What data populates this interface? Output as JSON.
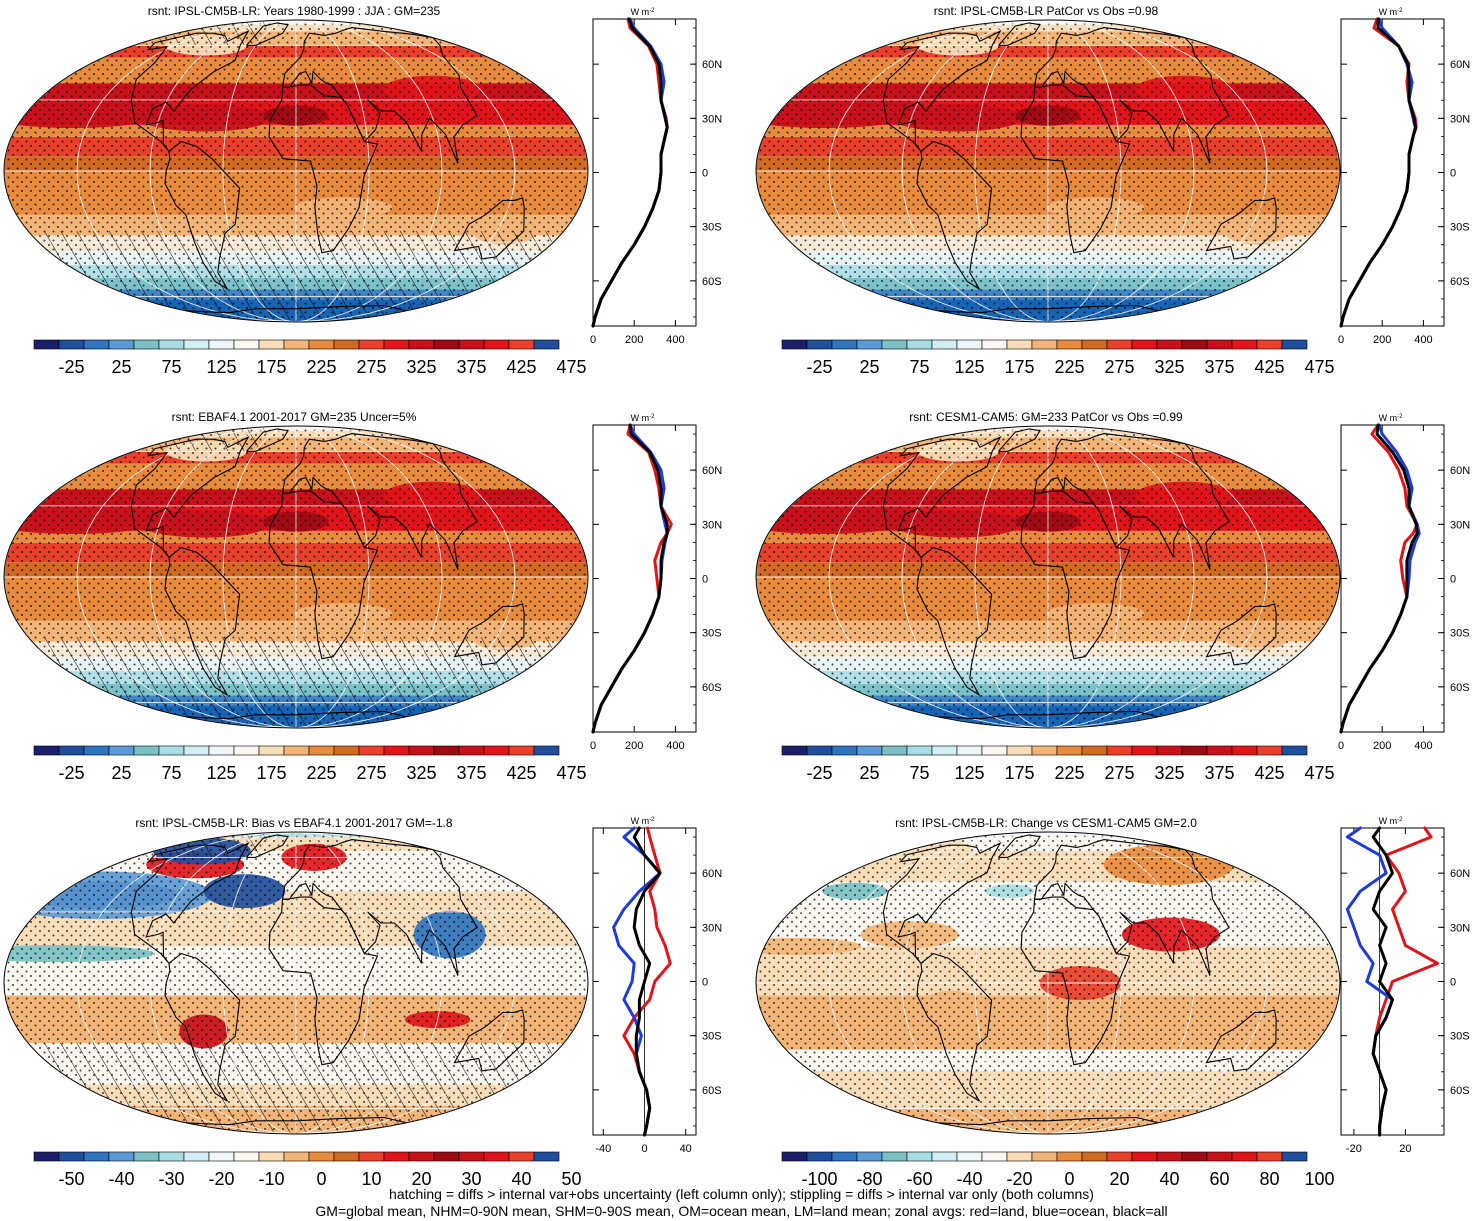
{
  "footer": {
    "line1": "hatching = diffs > internal var+obs uncertainty (left column only); stippling = diffs > internal var only (both columns)",
    "line2": "GM=global mean, NHM=0-90N mean, SHM=0-90S mean, OM=ocean mean, LM=land mean; zonal avgs: red=land, blue=ocean, black=all"
  },
  "colorbars": {
    "absolute": {
      "labels": [
        "-25",
        "25",
        "75",
        "125",
        "175",
        "225",
        "275",
        "325",
        "375",
        "425",
        "475"
      ],
      "colors": [
        "#1b1f6b",
        "#1f4e9c",
        "#2f74bf",
        "#5b9ad6",
        "#7ac0c4",
        "#a7dde3",
        "#d3eff6",
        "#eef6f8",
        "#fbf7f1",
        "#f9ddb8",
        "#f3b577",
        "#e98b3e",
        "#d36a22",
        "#e8402b",
        "#e3131a",
        "#c8101b",
        "#9e0a12",
        "#c8101b",
        "#e3131a",
        "#e8402b",
        "#1f4e9c"
      ]
    },
    "bias": {
      "labels": [
        "-50",
        "-40",
        "-30",
        "-20",
        "-10",
        "0",
        "10",
        "20",
        "30",
        "40",
        "50"
      ],
      "colors": [
        "#1b1f6b",
        "#1f4e9c",
        "#2f74bf",
        "#5b9ad6",
        "#7ac0c4",
        "#a7dde3",
        "#d3eff6",
        "#eef6f8",
        "#fbf7f1",
        "#f9ddb8",
        "#f3b577",
        "#e98b3e",
        "#d36a22",
        "#e8402b",
        "#e3131a",
        "#c8101b",
        "#9e0a12",
        "#c8101b",
        "#e3131a",
        "#e8402b",
        "#1f4e9c"
      ]
    },
    "change": {
      "labels": [
        "-100",
        "-80",
        "-60",
        "-40",
        "-20",
        "0",
        "20",
        "40",
        "60",
        "80",
        "100"
      ],
      "colors": [
        "#1b1f6b",
        "#1f4e9c",
        "#2f74bf",
        "#5b9ad6",
        "#7ac0c4",
        "#a7dde3",
        "#d3eff6",
        "#eef6f8",
        "#fbf7f1",
        "#f9ddb8",
        "#f3b577",
        "#e98b3e",
        "#d36a22",
        "#e8402b",
        "#e3131a",
        "#c8101b",
        "#9e0a12",
        "#c8101b",
        "#e3131a",
        "#e8402b",
        "#1f4e9c"
      ]
    }
  },
  "chart_data": [
    {
      "type": "heatmap",
      "title": "rsnt: IPSL-CM5B-LR: Years 1980-1999 : JJA : GM=235",
      "colorbar": "absolute",
      "map_style": "absolute",
      "hatching": true,
      "stippling": true,
      "zonal": {
        "type": "line",
        "unit": "W m",
        "unit_exp": "-2",
        "xticks": [
          "0",
          "200",
          "400"
        ],
        "xlim": [
          0,
          500
        ],
        "yticks": [
          "60N",
          "30N",
          "0",
          "30S",
          "60S"
        ],
        "ylim": [
          -85,
          85
        ],
        "lat": [
          -85,
          -80,
          -70,
          -60,
          -50,
          -40,
          -30,
          -20,
          -10,
          0,
          10,
          20,
          25,
          30,
          40,
          50,
          60,
          70,
          80,
          85
        ],
        "series": [
          {
            "values": [
              0,
              10,
              40,
              90,
              140,
              200,
              250,
              290,
              320,
              330,
              330,
              350,
              360,
              355,
              330,
              320,
              310,
              270,
              180,
              170
            ],
            "color": "#e3131a"
          },
          {
            "values": [
              0,
              10,
              40,
              90,
              140,
              200,
              250,
              290,
              320,
              330,
              330,
              350,
              360,
              350,
              330,
              345,
              330,
              280,
              200,
              180
            ],
            "color": "#1f3bd6"
          },
          {
            "values": [
              0,
              10,
              40,
              90,
              140,
              200,
              250,
              290,
              320,
              330,
              330,
              350,
              360,
              352,
              330,
              330,
              320,
              275,
              190,
              175
            ],
            "color": "#000000"
          }
        ]
      }
    },
    {
      "type": "heatmap",
      "title": "rsnt: IPSL-CM5B-LR PatCor vs Obs =0.98",
      "colorbar": "absolute",
      "map_style": "absolute",
      "hatching": false,
      "stippling": true,
      "zonal": {
        "type": "line",
        "unit": "W m",
        "unit_exp": "-2",
        "xticks": [
          "0",
          "200",
          "400"
        ],
        "xlim": [
          0,
          500
        ],
        "yticks": [
          "60N",
          "30N",
          "0",
          "30S",
          "60S"
        ],
        "ylim": [
          -85,
          85
        ],
        "lat": [
          -85,
          -80,
          -70,
          -60,
          -50,
          -40,
          -30,
          -20,
          -10,
          0,
          10,
          20,
          25,
          30,
          40,
          50,
          60,
          70,
          80,
          85
        ],
        "series": [
          {
            "values": [
              0,
              10,
              40,
              90,
              140,
              200,
              250,
              290,
              320,
              330,
              330,
              350,
              365,
              360,
              330,
              320,
              330,
              280,
              160,
              175
            ],
            "color": "#e3131a"
          },
          {
            "values": [
              0,
              10,
              40,
              90,
              140,
              200,
              250,
              290,
              320,
              330,
              330,
              350,
              360,
              350,
              330,
              345,
              320,
              280,
              200,
              185
            ],
            "color": "#1f3bd6"
          },
          {
            "values": [
              0,
              10,
              40,
              90,
              140,
              200,
              250,
              290,
              320,
              330,
              330,
              350,
              362,
              355,
              330,
              330,
              325,
              280,
              180,
              180
            ],
            "color": "#000000"
          }
        ]
      }
    },
    {
      "type": "heatmap",
      "title": "rsnt: EBAF4.1 2001-2017 GM=235 Uncer=5%",
      "colorbar": "absolute",
      "map_style": "absolute",
      "hatching": true,
      "stippling": true,
      "zonal": {
        "type": "line",
        "unit": "W m",
        "unit_exp": "-2",
        "xticks": [
          "0",
          "200",
          "400"
        ],
        "xlim": [
          0,
          500
        ],
        "yticks": [
          "60N",
          "30N",
          "0",
          "30S",
          "60S"
        ],
        "ylim": [
          -85,
          85
        ],
        "lat": [
          -85,
          -80,
          -70,
          -60,
          -50,
          -40,
          -30,
          -20,
          -10,
          0,
          10,
          20,
          25,
          30,
          40,
          50,
          60,
          70,
          80,
          85
        ],
        "series": [
          {
            "values": [
              0,
              10,
              40,
              90,
              140,
              200,
              250,
              290,
              320,
              310,
              300,
              330,
              360,
              380,
              330,
              320,
              300,
              270,
              170,
              180
            ],
            "color": "#e3131a"
          },
          {
            "values": [
              0,
              10,
              40,
              90,
              140,
              200,
              250,
              290,
              320,
              330,
              335,
              350,
              360,
              350,
              330,
              345,
              330,
              280,
              200,
              180
            ],
            "color": "#1f3bd6"
          },
          {
            "values": [
              0,
              10,
              40,
              90,
              140,
              200,
              250,
              290,
              320,
              330,
              330,
              345,
              360,
              360,
              330,
              330,
              315,
              275,
              185,
              180
            ],
            "color": "#000000"
          }
        ]
      }
    },
    {
      "type": "heatmap",
      "title": "rsnt: CESM1-CAM5: GM=233 PatCor vs Obs =0.99",
      "colorbar": "absolute",
      "map_style": "absolute",
      "hatching": false,
      "stippling": true,
      "zonal": {
        "type": "line",
        "unit": "W m",
        "unit_exp": "-2",
        "xticks": [
          "0",
          "200",
          "400"
        ],
        "xlim": [
          0,
          500
        ],
        "yticks": [
          "60N",
          "30N",
          "0",
          "30S",
          "60S"
        ],
        "ylim": [
          -85,
          85
        ],
        "lat": [
          -85,
          -80,
          -70,
          -60,
          -50,
          -40,
          -30,
          -20,
          -10,
          0,
          10,
          20,
          25,
          30,
          40,
          50,
          60,
          70,
          80,
          85
        ],
        "series": [
          {
            "values": [
              0,
              10,
              40,
              90,
              140,
              200,
              250,
              290,
              320,
              300,
              290,
              310,
              350,
              370,
              320,
              310,
              280,
              230,
              150,
              180
            ],
            "color": "#e3131a"
          },
          {
            "values": [
              0,
              10,
              40,
              90,
              140,
              200,
              250,
              290,
              320,
              330,
              335,
              360,
              380,
              370,
              330,
              345,
              320,
              270,
              200,
              185
            ],
            "color": "#1f3bd6"
          },
          {
            "values": [
              0,
              10,
              40,
              90,
              140,
              200,
              250,
              290,
              320,
              320,
              320,
              345,
              370,
              365,
              330,
              330,
              305,
              250,
              175,
              180
            ],
            "color": "#000000"
          }
        ]
      }
    },
    {
      "type": "heatmap",
      "title": "rsnt: IPSL-CM5B-LR: Bias vs EBAF4.1 2001-2017 GM=-1.8",
      "colorbar": "bias",
      "map_style": "bias",
      "hatching": true,
      "stippling": true,
      "zonal": {
        "type": "line",
        "unit": "W m",
        "unit_exp": "-2",
        "xticks": [
          "-40",
          "0",
          "40"
        ],
        "xlim": [
          -50,
          50
        ],
        "yticks": [
          "60N",
          "30N",
          "0",
          "30S",
          "60S"
        ],
        "ylim": [
          -85,
          85
        ],
        "lat": [
          -85,
          -80,
          -70,
          -60,
          -50,
          -40,
          -30,
          -20,
          -10,
          0,
          10,
          20,
          30,
          40,
          50,
          60,
          70,
          80,
          85
        ],
        "series": [
          {
            "values": [
              0,
              2,
              5,
              2,
              -5,
              -10,
              -20,
              -10,
              5,
              10,
              25,
              20,
              12,
              10,
              5,
              15,
              10,
              5,
              3
            ],
            "color": "#e3131a"
          },
          {
            "values": [
              0,
              2,
              5,
              2,
              -5,
              -8,
              -3,
              -10,
              -20,
              -12,
              -10,
              -25,
              -30,
              -20,
              -5,
              15,
              0,
              -20,
              -10
            ],
            "color": "#1f3bd6"
          },
          {
            "values": [
              0,
              2,
              5,
              2,
              -5,
              -8,
              -8,
              -5,
              -5,
              0,
              5,
              -5,
              -10,
              -8,
              0,
              15,
              0,
              -10,
              -5
            ],
            "color": "#000000"
          }
        ]
      }
    },
    {
      "type": "heatmap",
      "title": "rsnt: IPSL-CM5B-LR: Change vs CESM1-CAM5 GM=2.0",
      "colorbar": "change",
      "map_style": "change",
      "hatching": false,
      "stippling": true,
      "zonal": {
        "type": "line",
        "unit": "W m",
        "unit_exp": "-2",
        "xticks": [
          "-20",
          "20"
        ],
        "xlim": [
          -30,
          50
        ],
        "yticks": [
          "60N",
          "30N",
          "0",
          "30S",
          "60S"
        ],
        "ylim": [
          -85,
          85
        ],
        "lat": [
          -85,
          -80,
          -70,
          -60,
          -50,
          -40,
          -30,
          -20,
          -10,
          0,
          10,
          20,
          30,
          40,
          50,
          60,
          70,
          80,
          85
        ],
        "series": [
          {
            "values": [
              0,
              0,
              2,
              5,
              0,
              -5,
              -3,
              0,
              5,
              10,
              45,
              20,
              15,
              10,
              20,
              15,
              5,
              40,
              35
            ],
            "color": "#e3131a"
          },
          {
            "values": [
              0,
              0,
              2,
              5,
              0,
              -5,
              -3,
              5,
              10,
              -10,
              -5,
              -15,
              -20,
              -25,
              -15,
              5,
              0,
              -25,
              -15
            ],
            "color": "#1f3bd6"
          },
          {
            "values": [
              0,
              0,
              2,
              5,
              0,
              -5,
              -3,
              5,
              10,
              0,
              5,
              0,
              5,
              -5,
              0,
              10,
              5,
              -5,
              0
            ],
            "color": "#000000"
          }
        ]
      }
    }
  ]
}
